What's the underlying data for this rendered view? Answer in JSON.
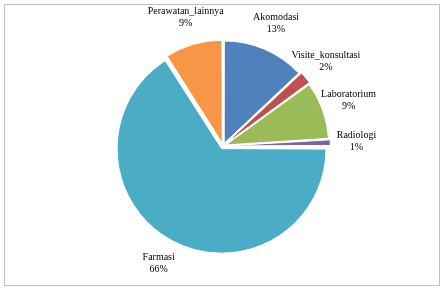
{
  "chart_data": {
    "type": "pie",
    "categories": [
      "Akomodasi",
      "Visite_konsultasi",
      "Laboratorium",
      "Radiologi",
      "Farmasi",
      "Perawatan_lainnya"
    ],
    "values": [
      13,
      2,
      9,
      1,
      66,
      9
    ],
    "value_labels": [
      "13%",
      "2%",
      "9%",
      "1%",
      "66%",
      "9%"
    ],
    "colors": [
      "#4f81bd",
      "#c0504d",
      "#9bbb59",
      "#8064a2",
      "#4bacc6",
      "#f79646"
    ],
    "data_labels": true
  }
}
